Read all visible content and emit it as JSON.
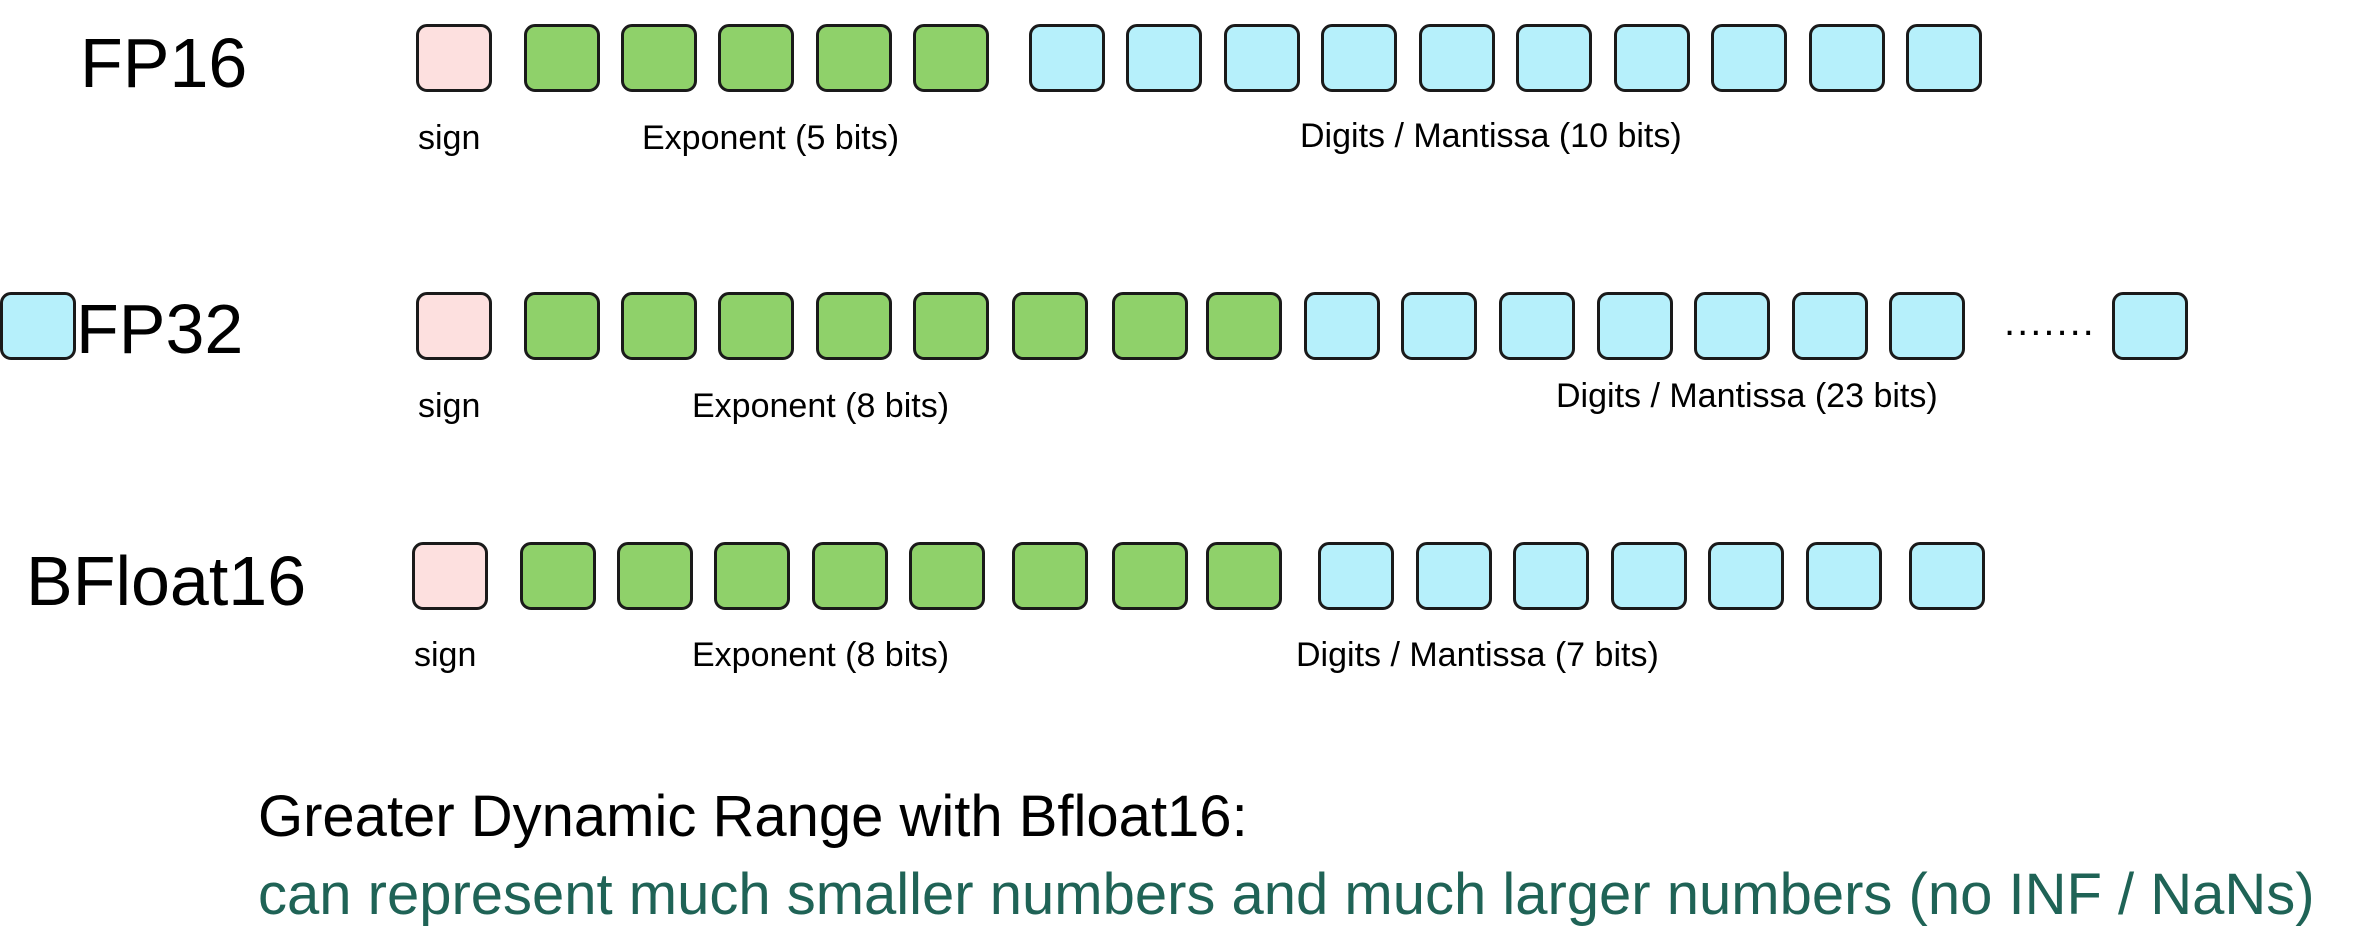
{
  "colors": {
    "sign": "#fde0df",
    "exponent": "#8fd16a",
    "mantissa": "#b6f0fb",
    "caption_subtitle": "#1f6356"
  },
  "formats": [
    {
      "name": "FP16",
      "sign_bits": 1,
      "exponent_bits": 5,
      "mantissa_bits_drawn": 10,
      "mantissa_ellipsis": false,
      "labels": {
        "sign": "sign",
        "exponent": "Exponent (5 bits)",
        "mantissa": "Digits / Mantissa (10 bits)"
      }
    },
    {
      "name": "FP32",
      "sign_bits": 1,
      "exponent_bits": 8,
      "mantissa_bits_drawn": 8,
      "mantissa_ellipsis": true,
      "ellipsis_text": ".......",
      "labels": {
        "sign": "sign",
        "exponent": "Exponent (8 bits)",
        "mantissa": "Digits / Mantissa (23 bits)"
      }
    },
    {
      "name": "BFloat16",
      "sign_bits": 1,
      "exponent_bits": 8,
      "mantissa_bits_drawn": 7,
      "mantissa_ellipsis": false,
      "labels": {
        "sign": "sign",
        "exponent": "Exponent (8 bits)",
        "mantissa": "Digits / Mantissa (7 bits)"
      }
    }
  ],
  "caption": {
    "title": "Greater Dynamic Range with Bfloat16:",
    "subtitle": "can represent much smaller numbers and much larger numbers (no INF / NaNs)"
  }
}
